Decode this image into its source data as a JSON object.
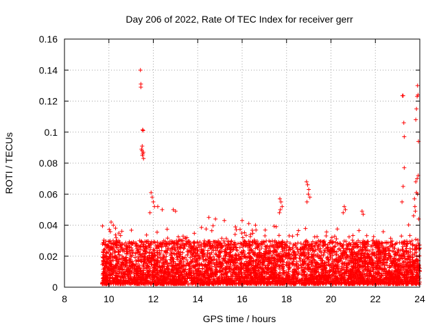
{
  "chart_data": {
    "type": "scatter",
    "title": "Day 206 of 2022, Rate Of TEC Index for receiver gerr",
    "xlabel": "GPS time / hours",
    "ylabel": "ROTI / TECUs",
    "xlim": [
      8,
      24
    ],
    "ylim": [
      0,
      0.16
    ],
    "xticks": [
      "8",
      "10",
      "12",
      "14",
      "16",
      "18",
      "20",
      "22",
      "24"
    ],
    "yticks": [
      "0",
      "0.02",
      "0.04",
      "0.06",
      "0.08",
      "0.1",
      "0.12",
      "0.14",
      "0.16"
    ],
    "grid": true,
    "marker": "+",
    "color": "#ff0000",
    "series": [
      {
        "x": [
          11.42,
          11.44,
          11.44,
          11.52,
          11.54,
          11.5,
          11.47,
          11.49,
          11.55,
          11.53,
          11.51,
          11.56,
          23.22,
          23.25,
          23.28,
          23.3,
          23.9,
          23.92,
          23.88,
          23.85,
          23.82,
          23.94,
          23.93,
          23.88,
          23.3,
          23.25,
          23.2,
          23.82,
          23.85,
          23.9,
          23.76,
          23.78,
          23.8,
          23.72,
          23.95,
          11.9,
          11.95,
          12.0,
          12.05,
          11.85,
          12.2,
          12.4,
          12.9,
          13.0,
          17.7,
          17.75,
          17.8,
          17.72,
          17.68,
          18.9,
          18.95,
          19.0,
          18.98,
          19.05,
          18.92,
          20.6,
          20.65,
          20.55,
          21.4,
          21.45,
          10.1,
          10.2,
          10.3,
          14.5,
          14.8,
          15.2,
          16.0,
          16.3,
          16.6
        ],
        "y": [
          0.14,
          0.131,
          0.129,
          0.1015,
          0.101,
          0.091,
          0.089,
          0.088,
          0.087,
          0.086,
          0.085,
          0.083,
          0.1235,
          0.1235,
          0.106,
          0.097,
          0.13,
          0.124,
          0.123,
          0.115,
          0.108,
          0.094,
          0.072,
          0.07,
          0.077,
          0.065,
          0.055,
          0.068,
          0.061,
          0.06,
          0.057,
          0.052,
          0.049,
          0.046,
          0.044,
          0.061,
          0.058,
          0.055,
          0.052,
          0.048,
          0.052,
          0.05,
          0.05,
          0.049,
          0.057,
          0.055,
          0.052,
          0.05,
          0.048,
          0.068,
          0.066,
          0.063,
          0.06,
          0.058,
          0.055,
          0.052,
          0.05,
          0.048,
          0.049,
          0.047,
          0.042,
          0.04,
          0.038,
          0.045,
          0.044,
          0.043,
          0.043,
          0.041,
          0.04
        ],
        "band": {
          "x_start": 9.7,
          "x_end": 24.0,
          "y_min": 0.002,
          "y_typical_max": 0.03,
          "note_values": "dense cloud of ROTI values mostly between 0.002 and 0.03 from ~9.7 h to 24 h"
        }
      }
    ]
  }
}
